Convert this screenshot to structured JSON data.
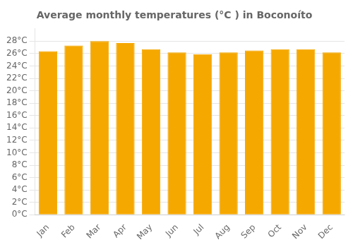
{
  "chart_data": {
    "type": "bar",
    "title": "Average monthly temperatures (°C ) in Boconoíto",
    "categories": [
      "Jan",
      "Feb",
      "Mar",
      "Apr",
      "May",
      "Jun",
      "Jul",
      "Aug",
      "Sep",
      "Oct",
      "Nov",
      "Dec"
    ],
    "values": [
      26.4,
      27.3,
      28.0,
      27.7,
      26.7,
      26.2,
      25.9,
      26.2,
      26.5,
      26.7,
      26.7,
      26.2
    ],
    "color": "#F5A800",
    "ylim": [
      0,
      30
    ],
    "yticks": [
      {
        "value": 0,
        "label": "0°C"
      },
      {
        "value": 2,
        "label": "2°C"
      },
      {
        "value": 4,
        "label": "4°C"
      },
      {
        "value": 6,
        "label": "6°C"
      },
      {
        "value": 8,
        "label": "8°C"
      },
      {
        "value": 10,
        "label": "10°C"
      },
      {
        "value": 12,
        "label": "12°C"
      },
      {
        "value": 14,
        "label": "14°C"
      },
      {
        "value": 16,
        "label": "16°C"
      },
      {
        "value": 18,
        "label": "18°C"
      },
      {
        "value": 20,
        "label": "20°C"
      },
      {
        "value": 22,
        "label": "22°C"
      },
      {
        "value": 24,
        "label": "24°C"
      },
      {
        "value": 26,
        "label": "26°C"
      },
      {
        "value": 28,
        "label": "28°C"
      }
    ],
    "grid": true
  }
}
